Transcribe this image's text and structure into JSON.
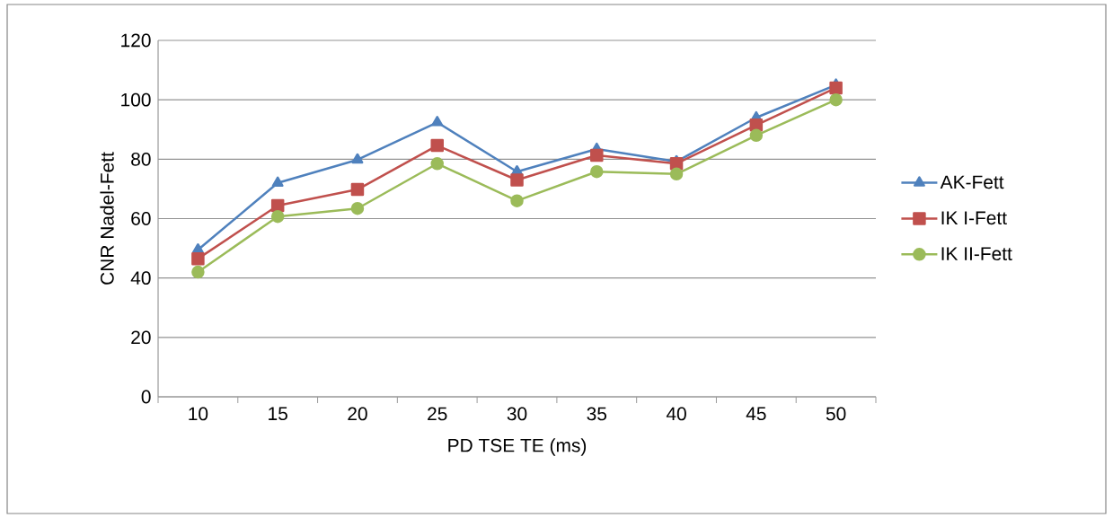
{
  "chart_data": {
    "type": "line",
    "xlabel": "PD TSE TE (ms)",
    "ylabel": "CNR Nadel-Fett",
    "categories": [
      "10",
      "15",
      "20",
      "25",
      "30",
      "35",
      "40",
      "45",
      "50"
    ],
    "series": [
      {
        "name": "AK-Fett",
        "color": "#4f81bd",
        "marker": "triangle",
        "values": [
          49.5,
          72,
          79.8,
          92.4,
          75.8,
          83.4,
          79.2,
          94,
          105
        ]
      },
      {
        "name": "IK I-Fett",
        "color": "#c0504d",
        "marker": "square",
        "values": [
          46.5,
          64.4,
          69.8,
          84.6,
          73,
          81.3,
          78.5,
          91.5,
          104
        ]
      },
      {
        "name": "IK II-Fett",
        "color": "#9bbb59",
        "marker": "circle",
        "values": [
          42,
          60.7,
          63.4,
          78.5,
          66,
          75.8,
          75,
          88,
          100
        ]
      }
    ],
    "ylim": [
      0,
      120
    ],
    "yticks": [
      0,
      20,
      40,
      60,
      80,
      100,
      120
    ],
    "grid": "y",
    "legend": "right",
    "line_style": "solid"
  }
}
